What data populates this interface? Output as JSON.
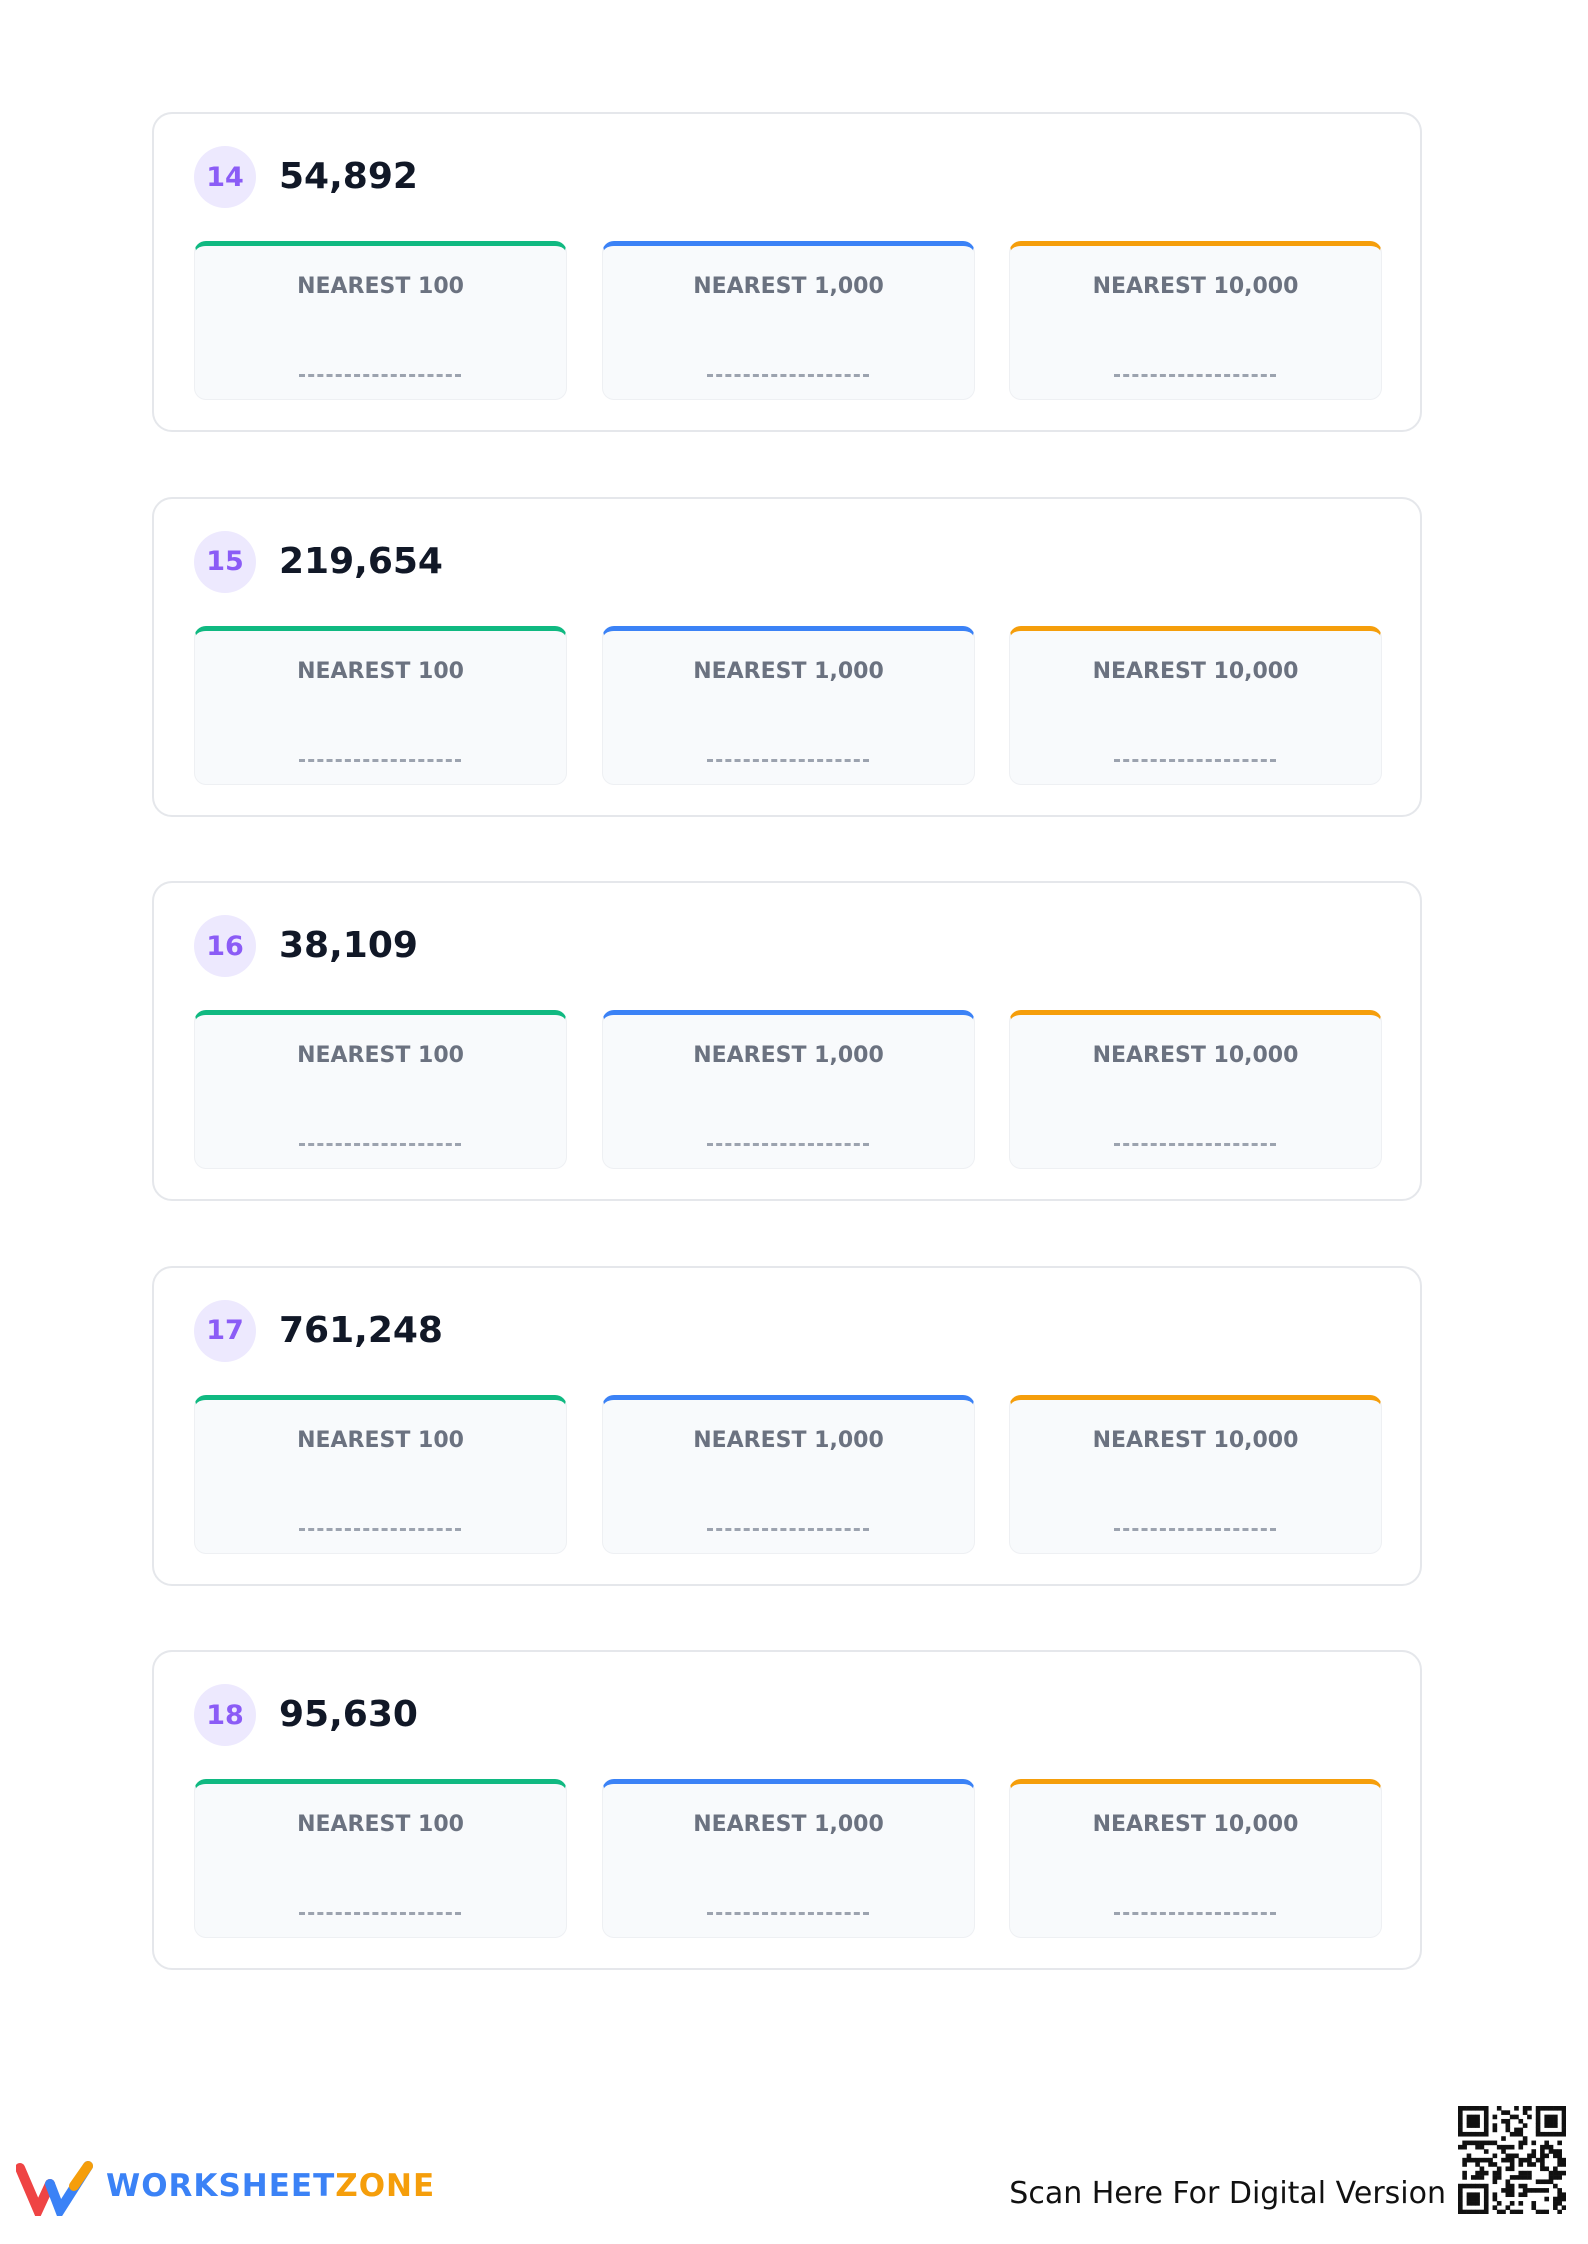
{
  "problems": [
    {
      "number": "14",
      "value": "54,892",
      "boxes": [
        "NEAREST 100",
        "NEAREST 1,000",
        "NEAREST 10,000"
      ]
    },
    {
      "number": "15",
      "value": "219,654",
      "boxes": [
        "NEAREST 100",
        "NEAREST 1,000",
        "NEAREST 10,000"
      ]
    },
    {
      "number": "16",
      "value": "38,109",
      "boxes": [
        "NEAREST 100",
        "NEAREST 1,000",
        "NEAREST 10,000"
      ]
    },
    {
      "number": "17",
      "value": "761,248",
      "boxes": [
        "NEAREST 100",
        "NEAREST 1,000",
        "NEAREST 10,000"
      ]
    },
    {
      "number": "18",
      "value": "95,630",
      "boxes": [
        "NEAREST 100",
        "NEAREST 1,000",
        "NEAREST 10,000"
      ]
    }
  ],
  "footer": {
    "brand_first": "WORKSHEET",
    "brand_second": "ZONE",
    "scan_text": "Scan Here For Digital Version"
  }
}
